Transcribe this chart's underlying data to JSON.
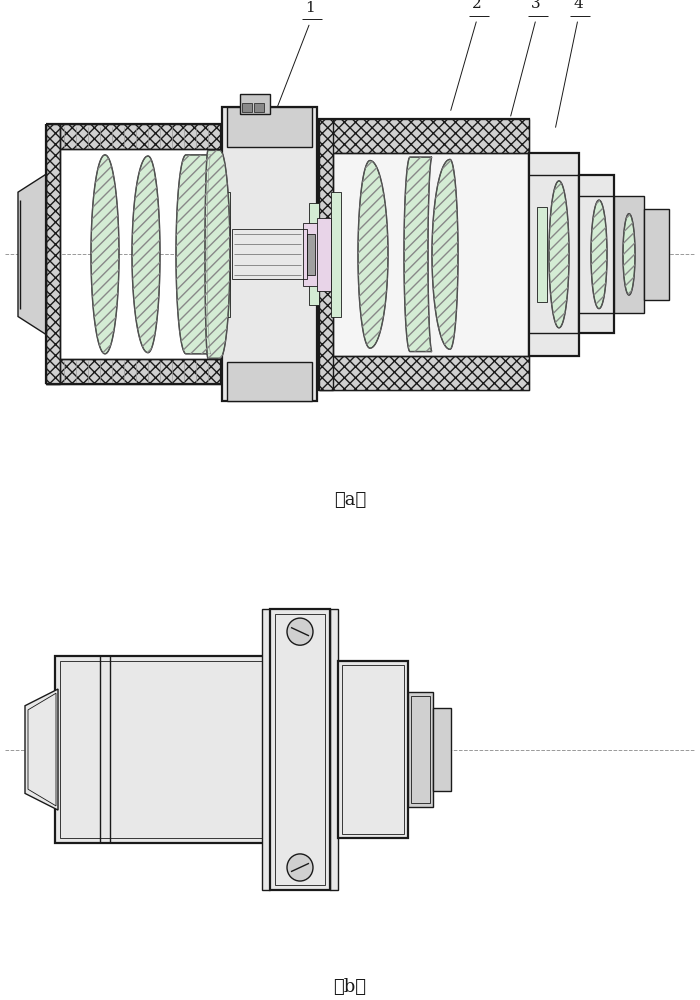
{
  "bg_color": "#ffffff",
  "line_color": "#1a1a1a",
  "dash_color": "#999999",
  "green_fill": "#d4ecd4",
  "purple_fill": "#e8d4e8",
  "gray_fill": "#c8c8c8",
  "light_gray": "#e8e8e8",
  "mid_gray": "#d0d0d0",
  "dark_gray": "#a0a0a0",
  "hatch_fill": "#f0f0f0",
  "lw_thin": 0.6,
  "lw_med": 1.0,
  "lw_thick": 1.6,
  "lw_xthick": 2.2
}
